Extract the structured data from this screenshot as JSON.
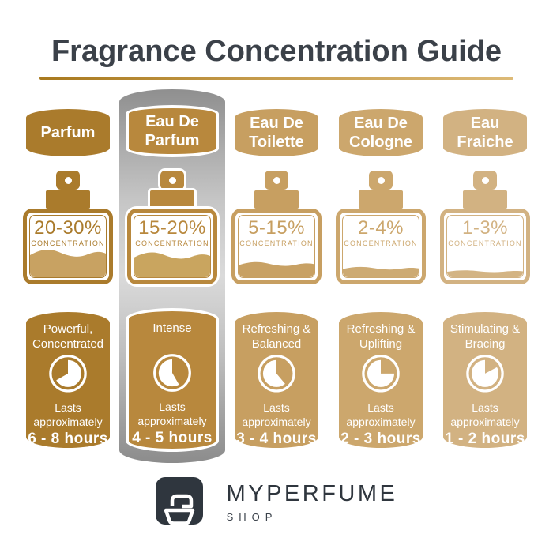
{
  "title": "Fragrance Concentration Guide",
  "title_color": "#3B4149",
  "underline_gradient": [
    "#A8791E",
    "#C49A4A",
    "#DDBA77"
  ],
  "highlight_panel": {
    "gradient": [
      "#8F8F8F",
      "#DADADA",
      "#8C8C8C"
    ],
    "behind_column": "Eau De Parfum"
  },
  "columns": [
    {
      "name": "Parfum",
      "color": "#AA7B2C",
      "fill_color": "#C8A262",
      "fill_height": 40,
      "concentration": "20-30%",
      "concentration_label": "CONCENTRATION",
      "description": "Powerful,\nConcentrated",
      "lasts_label": "Lasts\napproximately",
      "duration": "6 - 8 hours",
      "clock": {
        "wedge_start_deg": 240,
        "wedge_end_deg": 360
      },
      "highlighted": false
    },
    {
      "name": "Eau De\nParfum",
      "color": "#B8883D",
      "fill_color": "#C9A55F",
      "fill_height": 36,
      "concentration": "15-20%",
      "concentration_label": "CONCENTRATION",
      "description": "Intense",
      "lasts_label": "Lasts\napproximately",
      "duration": "4 - 5 hours",
      "clock": {
        "wedge_start_deg": 0,
        "wedge_end_deg": 150
      },
      "highlighted": true
    },
    {
      "name": "Eau De\nToilette",
      "color": "#C79F61",
      "fill_color": "#C8A164",
      "fill_height": 22,
      "concentration": "5-15%",
      "concentration_label": "CONCENTRATION",
      "description": "Refreshing &\nBalanced",
      "lasts_label": "Lasts\napproximately",
      "duration": "3 - 4 hours",
      "clock": {
        "wedge_start_deg": 0,
        "wedge_end_deg": 140
      },
      "highlighted": false
    },
    {
      "name": "Eau De\nCologne",
      "color": "#CCA76D",
      "fill_color": "#CDAA72",
      "fill_height": 15,
      "concentration": "2-4%",
      "concentration_label": "CONCENTRATION",
      "description": "Refreshing &\nUplifting",
      "lasts_label": "Lasts\napproximately",
      "duration": "2 - 3 hours",
      "clock": {
        "wedge_start_deg": 0,
        "wedge_end_deg": 90
      },
      "highlighted": false
    },
    {
      "name": "Eau\nFraiche",
      "color": "#D2B282",
      "fill_color": "#D3B484",
      "fill_height": 10,
      "concentration": "1-3%",
      "concentration_label": "CONCENTRATION",
      "description": "Stimulating &\nBracing",
      "lasts_label": "Lasts\napproximately",
      "duration": "1 - 2 hours",
      "clock": {
        "wedge_start_deg": 0,
        "wedge_end_deg": 62
      },
      "highlighted": false
    }
  ],
  "logo": {
    "name": "MYPERFUME",
    "sub": "SHOP",
    "color": "#2F363E"
  }
}
